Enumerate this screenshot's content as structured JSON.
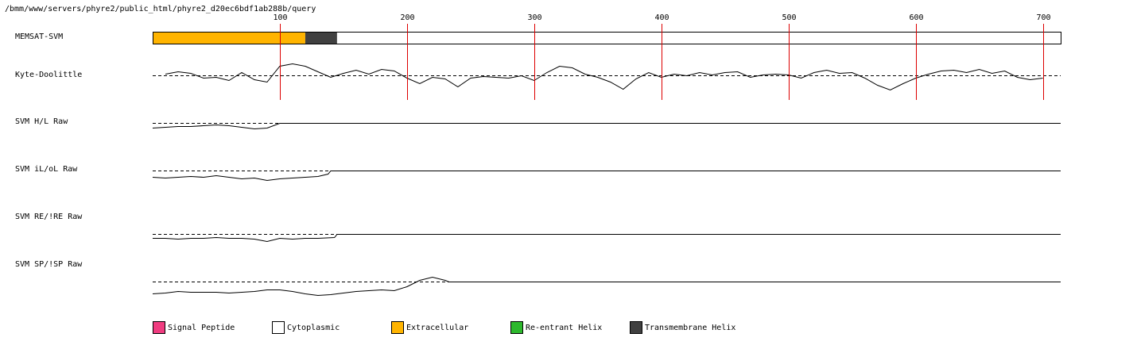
{
  "chart_data": {
    "type": "memsat",
    "title": "/bmm/www/servers/phyre2/public_html/phyre2_d20ec6bdf1ab288b/query",
    "xlim": [
      0,
      714
    ],
    "xticks": [
      100,
      200,
      300,
      400,
      500,
      600,
      700
    ],
    "ylim": [
      -20,
      20
    ],
    "grid": true,
    "grid_color": "#dd0000",
    "topology": {
      "name": "MEMSAT-SVM",
      "segments": [
        {
          "start": 0,
          "end": 120,
          "color": "#ffb400"
        },
        {
          "start": 120,
          "end": 145,
          "color": "#404040"
        },
        {
          "start": 145,
          "end": 714,
          "color": "#ffffff"
        }
      ]
    },
    "tracks": [
      {
        "name": "Kyte-Doolittle",
        "x": [
          10,
          20,
          30,
          40,
          50,
          60,
          70,
          80,
          90,
          100,
          110,
          120,
          130,
          140,
          150,
          160,
          170,
          180,
          190,
          200,
          210,
          220,
          230,
          240,
          250,
          260,
          270,
          280,
          290,
          300,
          310,
          320,
          330,
          340,
          350,
          360,
          370,
          380,
          390,
          400,
          410,
          420,
          430,
          440,
          450,
          460,
          470,
          480,
          490,
          500,
          510,
          520,
          530,
          540,
          550,
          560,
          570,
          580,
          590,
          600,
          610,
          620,
          630,
          640,
          650,
          660,
          670,
          680,
          690,
          700
        ],
        "values": [
          2,
          5,
          3,
          -3,
          -2,
          -6,
          4,
          -5,
          -8,
          12,
          15,
          12,
          5,
          -2,
          3,
          7,
          2,
          8,
          6,
          -3,
          -10,
          -2,
          -4,
          -14,
          -3,
          -1,
          -2,
          -3,
          0,
          -6,
          4,
          12,
          10,
          2,
          -2,
          -8,
          -17,
          -4,
          4,
          -2,
          2,
          0,
          4,
          1,
          4,
          5,
          -2,
          1,
          2,
          1,
          -3,
          4,
          7,
          3,
          4,
          -3,
          -12,
          -18,
          -10,
          -3,
          2,
          6,
          7,
          4,
          8,
          3,
          6,
          -2,
          -5,
          -3
        ]
      },
      {
        "name": "SVM H/L Raw",
        "x": [
          0,
          10,
          20,
          30,
          40,
          50,
          60,
          70,
          80,
          90,
          100,
          714
        ],
        "values": [
          -6,
          -5,
          -4,
          -4,
          -3,
          -2,
          -3,
          -5,
          -7,
          -6,
          0,
          0
        ]
      },
      {
        "name": "SVM iL/oL Raw",
        "x": [
          0,
          10,
          20,
          30,
          40,
          50,
          60,
          70,
          80,
          90,
          100,
          110,
          120,
          130,
          138,
          140,
          714
        ],
        "values": [
          -8,
          -9,
          -8,
          -7,
          -8,
          -6,
          -8,
          -10,
          -9,
          -12,
          -10,
          -9,
          -8,
          -7,
          -4,
          0,
          0
        ]
      },
      {
        "name": "SVM RE/!RE Raw",
        "x": [
          0,
          10,
          20,
          30,
          40,
          50,
          60,
          70,
          80,
          90,
          100,
          110,
          120,
          130,
          143,
          145,
          714
        ],
        "values": [
          -5,
          -5,
          -6,
          -5,
          -5,
          -4,
          -5,
          -5,
          -6,
          -9,
          -5,
          -6,
          -5,
          -5,
          -4,
          0,
          0
        ]
      },
      {
        "name": "SVM SP/!SP Raw",
        "x": [
          0,
          10,
          20,
          30,
          40,
          50,
          60,
          70,
          80,
          90,
          100,
          110,
          120,
          130,
          140,
          150,
          160,
          170,
          180,
          190,
          200,
          210,
          220,
          230,
          233,
          714
        ],
        "values": [
          -15,
          -14,
          -12,
          -13,
          -13,
          -13,
          -14,
          -13,
          -12,
          -10,
          -10,
          -12,
          -15,
          -17,
          -16,
          -14,
          -12,
          -11,
          -10,
          -11,
          -6,
          2,
          6,
          2,
          0,
          0
        ]
      }
    ],
    "legend": [
      {
        "name": "Signal Peptide",
        "color": "#f03c80"
      },
      {
        "name": "Cytoplasmic",
        "color": "#ffffff"
      },
      {
        "name": "Extracellular",
        "color": "#ffb400"
      },
      {
        "name": "Re-entrant Helix",
        "color": "#2db82d"
      },
      {
        "name": "Transmembrane Helix",
        "color": "#404040"
      }
    ]
  }
}
